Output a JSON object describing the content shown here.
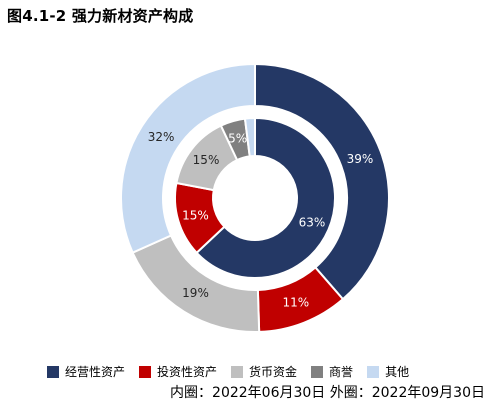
{
  "title": "图4.1-2 强力新材资产构成",
  "chart_data": {
    "type": "pie",
    "style": "double-donut",
    "categories": [
      "经营性资产",
      "投资性资产",
      "货币资金",
      "商誉",
      "其他"
    ],
    "colors": [
      "#243865",
      "#c00000",
      "#bfbfbf",
      "#808080",
      "#c5d9f1"
    ],
    "inner": {
      "label": "内圈：2022年06月30日",
      "values": [
        63,
        15,
        15,
        5,
        2
      ],
      "labels": [
        "63%",
        "15%",
        "15%",
        "5%",
        ""
      ]
    },
    "outer": {
      "label": "外圈：2022年09月30日",
      "values": [
        39,
        11,
        19,
        0,
        32
      ],
      "labels": [
        "39%",
        "11%",
        "19%",
        "",
        "32%"
      ]
    },
    "legend_position": "bottom"
  },
  "legend": [
    {
      "label": "经营性资产",
      "color": "#243865"
    },
    {
      "label": "投资性资产",
      "color": "#c00000"
    },
    {
      "label": "货币资金",
      "color": "#bfbfbf"
    },
    {
      "label": "商誉",
      "color": "#808080"
    },
    {
      "label": "其他",
      "color": "#c5d9f1"
    }
  ],
  "footnote": "内圈：2022年06月30日 外圈：2022年09月30日"
}
